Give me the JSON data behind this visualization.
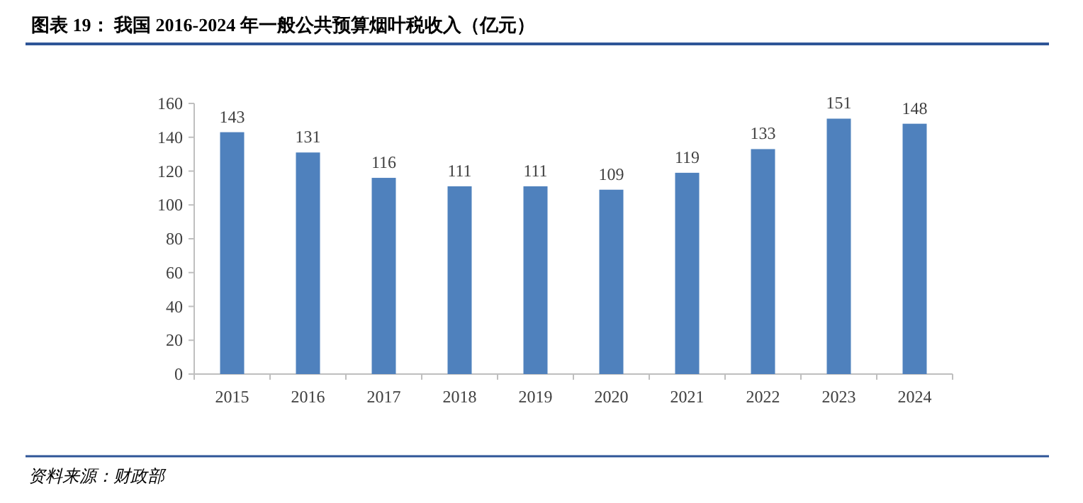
{
  "chart_data": {
    "type": "bar",
    "title": "图表 19：  我国 2016-2024 年一般公共预算烟叶税收入（亿元）",
    "categories": [
      "2015",
      "2016",
      "2017",
      "2018",
      "2019",
      "2020",
      "2021",
      "2022",
      "2023",
      "2024"
    ],
    "values": [
      143,
      131,
      116,
      111,
      111,
      109,
      119,
      133,
      151,
      148
    ],
    "color": "#4f81bd",
    "ylim": [
      0,
      160
    ],
    "yticks": [
      0,
      20,
      40,
      60,
      80,
      100,
      120,
      140,
      160
    ],
    "data_labels": true,
    "annotations": [
      "资料来源：财政部"
    ]
  }
}
